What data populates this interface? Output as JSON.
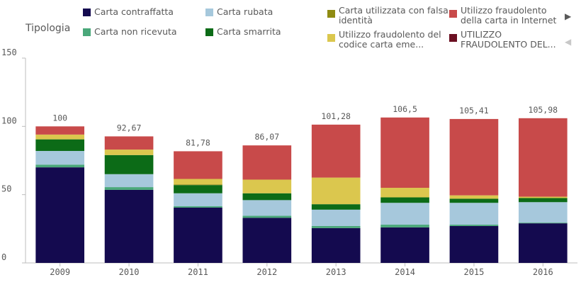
{
  "legend": {
    "title": "Tipologia",
    "items": [
      {
        "label": "Carta contraffatta",
        "color": "#140a4f"
      },
      {
        "label": "Carta non ricevuta",
        "color": "#4aa87a"
      },
      {
        "label": "Carta rubata",
        "color": "#a6c8dc"
      },
      {
        "label": "Carta smarrita",
        "color": "#0c6b17"
      },
      {
        "label": "Carta utilizzata con falsa identità",
        "display": "Carta utilizzata con falsa\nidentità",
        "color": "#8f8b12"
      },
      {
        "label": "Utilizzo fraudolento del codice carta emesso",
        "display": "Utilizzo fraudolento del\ncodice carta eme...",
        "color": "#dbc74e"
      },
      {
        "label": "Utilizzo fraudolento della carta in Internet",
        "display": "Utilizzo fraudolento\ndella carta in Internet",
        "color": "#c84a4a"
      },
      {
        "label": "UTILIZZO FRAUDOLENTO DEL...",
        "display": "UTILIZZO\nFRAUDOLENTO DEL...",
        "color": "#6b0f22"
      }
    ],
    "next_icon": "triangle-right-icon",
    "prev_icon": "triangle-left-icon"
  },
  "chart_data": {
    "type": "bar",
    "stacked": true,
    "categories": [
      "2009",
      "2010",
      "2011",
      "2012",
      "2013",
      "2014",
      "2015",
      "2016"
    ],
    "totals": [
      100,
      92.67,
      81.78,
      86.07,
      101.28,
      106.5,
      105.41,
      105.98
    ],
    "total_labels": [
      "100",
      "92,67",
      "81,78",
      "86,07",
      "101,28",
      "106,5",
      "105,41",
      "105,98"
    ],
    "yticks": [
      0,
      50,
      100,
      150
    ],
    "ylim": [
      0,
      150
    ],
    "grid": false,
    "series": [
      {
        "name": "Carta contraffatta",
        "color": "#140a4f",
        "values": [
          70,
          53.5,
          40.5,
          33,
          25.5,
          26,
          27,
          29
        ]
      },
      {
        "name": "Carta non ricevuta",
        "color": "#4aa87a",
        "values": [
          2,
          2,
          1,
          1.5,
          1.5,
          2,
          1,
          0.5
        ]
      },
      {
        "name": "Carta rubata",
        "color": "#a6c8dc",
        "values": [
          10,
          9.5,
          9.5,
          11.5,
          12,
          16,
          16,
          15
        ]
      },
      {
        "name": "Carta smarrita",
        "color": "#0c6b17",
        "values": [
          8.5,
          14,
          6,
          5,
          4,
          4,
          3,
          3
        ]
      },
      {
        "name": "Carta utilizzata con falsa identità",
        "color": "#8f8b12",
        "values": [
          0,
          0,
          0.5,
          0,
          0,
          0,
          0,
          0
        ]
      },
      {
        "name": "Utilizzo fraudolento del codice carta emesso",
        "color": "#dbc74e",
        "values": [
          3.5,
          4,
          4,
          10,
          19.5,
          7,
          2.5,
          1
        ]
      },
      {
        "name": "Utilizzo fraudolento della carta in Internet",
        "color": "#c84a4a",
        "values": [
          6,
          9.67,
          20.28,
          25.07,
          38.78,
          51.5,
          55.91,
          57.48
        ]
      },
      {
        "name": "UTILIZZO FRAUDOLENTO DEL...",
        "color": "#6b0f22",
        "values": [
          0,
          0,
          0,
          0,
          0,
          0,
          0,
          0
        ]
      }
    ]
  }
}
